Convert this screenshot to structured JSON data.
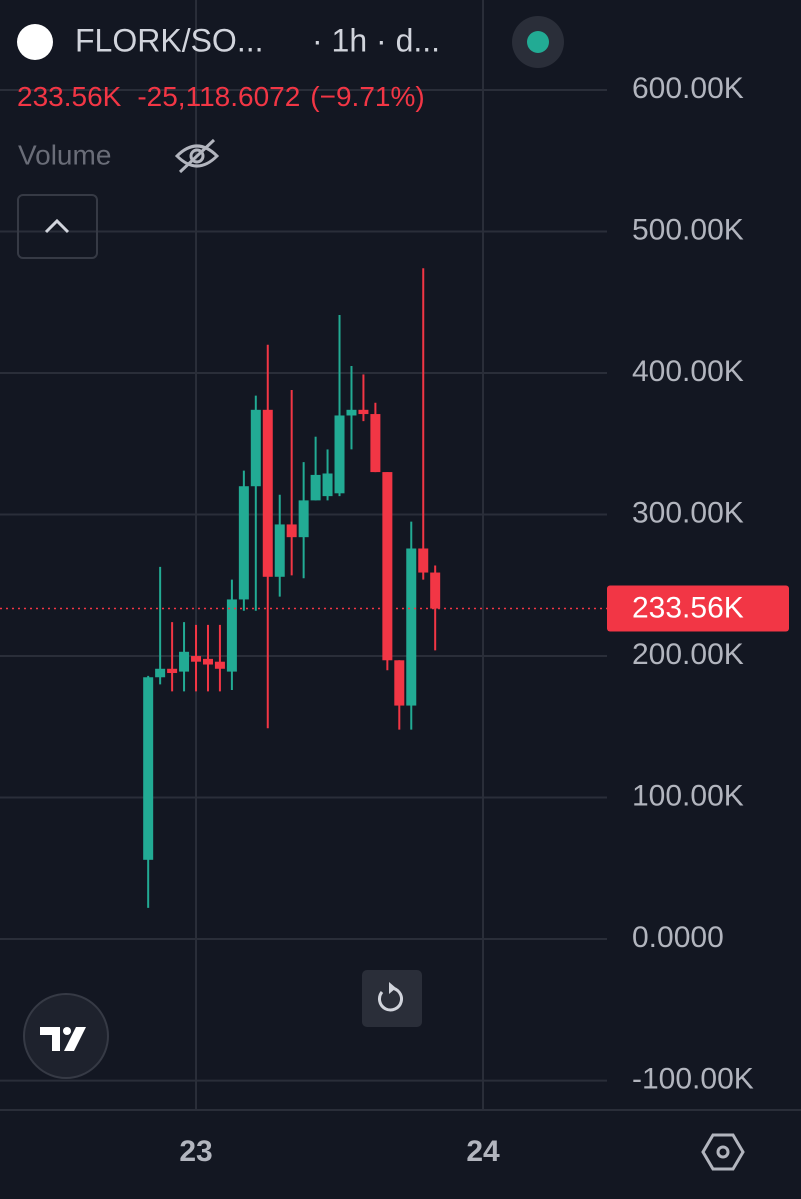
{
  "header": {
    "symbol": "FLORK/SO...",
    "interval": "· 1h · d...",
    "last": "233.56K",
    "change": "-25,118.6072",
    "change_pct": "(−9.71%)",
    "volume_label": "Volume"
  },
  "chart_data": {
    "type": "candlestick",
    "x": [
      22.8333,
      22.875,
      22.9167,
      22.9583,
      23,
      23.0417,
      23.0833,
      23.125,
      23.1667,
      23.2083,
      23.25,
      23.2917,
      23.3333,
      23.375,
      23.4167,
      23.4583,
      23.5,
      23.5417,
      23.5833,
      23.625,
      23.6667,
      23.7083,
      23.75,
      23.7917,
      23.8333
    ],
    "open": [
      56000,
      185000,
      191000,
      189000,
      200000,
      198000,
      196000,
      189000,
      240000,
      320000,
      374000,
      256000,
      293000,
      284000,
      310000,
      313000,
      315000,
      370000,
      374000,
      371000,
      330000,
      197000,
      165000,
      276000,
      259000
    ],
    "high": [
      186000,
      263000,
      224000,
      224000,
      222000,
      222000,
      222000,
      254000,
      331000,
      384000,
      420000,
      314000,
      388000,
      337000,
      355000,
      346000,
      441000,
      405000,
      399000,
      379000,
      330000,
      197000,
      295000,
      474000,
      264000
    ],
    "low": [
      22000,
      180000,
      175000,
      175000,
      175000,
      175000,
      175000,
      176000,
      232000,
      232000,
      149000,
      242000,
      257000,
      255000,
      310000,
      310000,
      313000,
      346000,
      366000,
      330000,
      190000,
      148000,
      148000,
      254000,
      204000
    ],
    "close": [
      185000,
      191000,
      188000,
      203000,
      196000,
      194000,
      191000,
      240000,
      320000,
      374000,
      256000,
      293000,
      284000,
      310000,
      328000,
      329000,
      370000,
      374000,
      371000,
      330000,
      197000,
      165000,
      276000,
      259000,
      233560
    ],
    "up_color": "#22ab94",
    "down_color": "#f23645",
    "xlim": [
      22.317,
      24.432
    ],
    "xticks": [
      23,
      24
    ],
    "ylim": [
      -120800,
      663600
    ],
    "yticks": [
      {
        "value": -100000,
        "label": "-100.00K"
      },
      {
        "value": 0,
        "label": "0.0000"
      },
      {
        "value": 100000,
        "label": "100.00K"
      },
      {
        "value": 200000,
        "label": "200.00K"
      },
      {
        "value": 300000,
        "label": "300.00K"
      },
      {
        "value": 400000,
        "label": "400.00K"
      },
      {
        "value": 500000,
        "label": "500.00K"
      },
      {
        "value": 600000,
        "label": "600.00K"
      }
    ],
    "last_price": {
      "value": 233560,
      "label": "233.56K"
    },
    "grid": true
  }
}
